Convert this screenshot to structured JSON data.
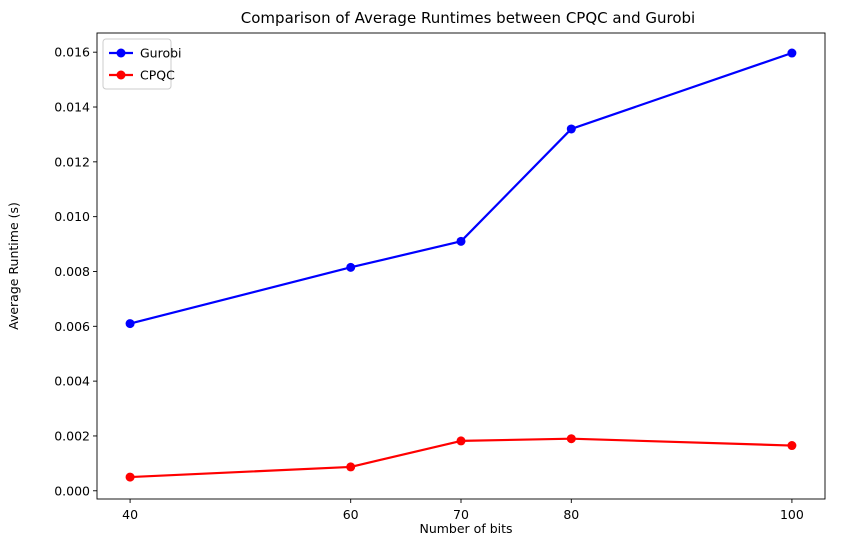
{
  "chart_data": {
    "type": "line",
    "title": "Comparison of Average Runtimes between CPQC and Gurobi",
    "xlabel": "Number of bits",
    "ylabel": "Average Runtime (s)",
    "x": [
      40,
      60,
      70,
      80,
      100
    ],
    "x_ticks": [
      "40",
      "60",
      "70",
      "80",
      "100"
    ],
    "y_ticks": [
      "0.000",
      "0.002",
      "0.004",
      "0.006",
      "0.008",
      "0.010",
      "0.012",
      "0.014",
      "0.016"
    ],
    "xlim": [
      37.0,
      103.0
    ],
    "ylim": [
      -0.0003,
      0.0167
    ],
    "grid": false,
    "legend_position": "top-left",
    "series": [
      {
        "name": "Gurobi",
        "color": "#0000ff",
        "marker": "circle",
        "values": [
          0.0061,
          0.00815,
          0.0091,
          0.0132,
          0.01597
        ]
      },
      {
        "name": "CPQC",
        "color": "#ff0000",
        "marker": "circle",
        "values": [
          0.0005,
          0.00087,
          0.00182,
          0.0019,
          0.00165
        ]
      }
    ]
  }
}
